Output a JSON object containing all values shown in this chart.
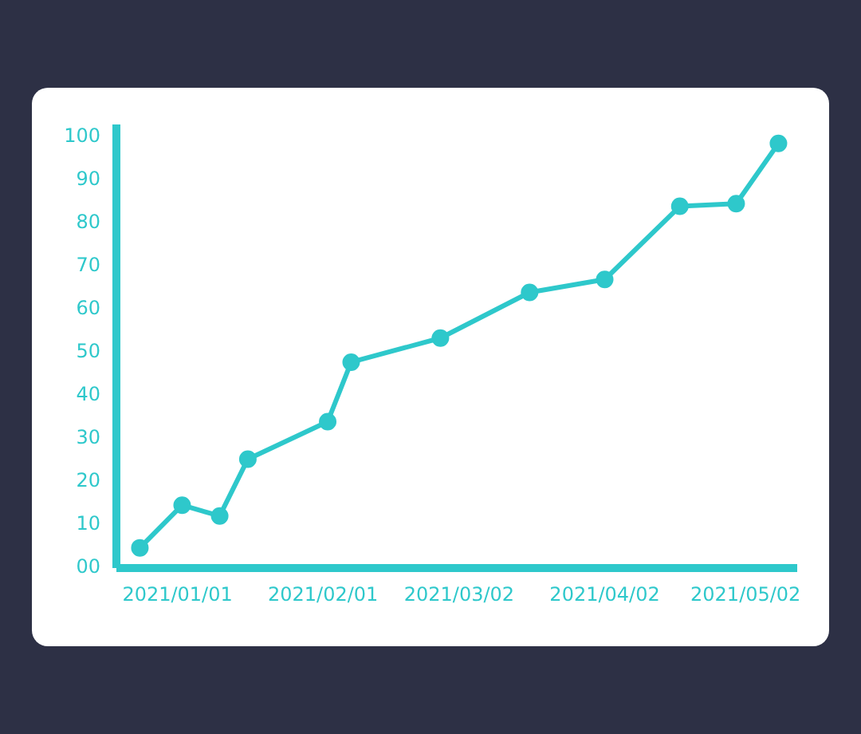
{
  "chart_data": {
    "type": "line",
    "x": [
      "2020-12-24",
      "2021-01-02",
      "2021-01-10",
      "2021-01-16",
      "2021-02-02",
      "2021-02-07",
      "2021-02-26",
      "2021-03-17",
      "2021-04-02",
      "2021-04-18",
      "2021-04-30",
      "2021-05-09"
    ],
    "series": [
      {
        "color": "#2ec8cb",
        "values": [
          4.7,
          14.6,
          12.1,
          25.3,
          34,
          47.8,
          53.4,
          64,
          67,
          84,
          84.6,
          98.6
        ]
      }
    ],
    "xlim": [
      "2020-12-19",
      "2021-05-13"
    ],
    "xticks": [
      {
        "value": "2021-01-01",
        "label": "2021/01/01"
      },
      {
        "value": "2021-02-01",
        "label": "2021/02/01"
      },
      {
        "value": "2021-03-02",
        "label": "2021/03/02"
      },
      {
        "value": "2021-04-02",
        "label": "2021/04/02"
      },
      {
        "value": "2021-05-02",
        "label": "2021/05/02"
      }
    ],
    "ylim": [
      0,
      103
    ],
    "yticks": [
      {
        "value": 0,
        "label": "00"
      },
      10,
      20,
      30,
      40,
      50,
      60,
      70,
      80,
      90,
      100
    ],
    "grid": false,
    "legend": false,
    "marker": "circle",
    "line_style": "solid"
  }
}
